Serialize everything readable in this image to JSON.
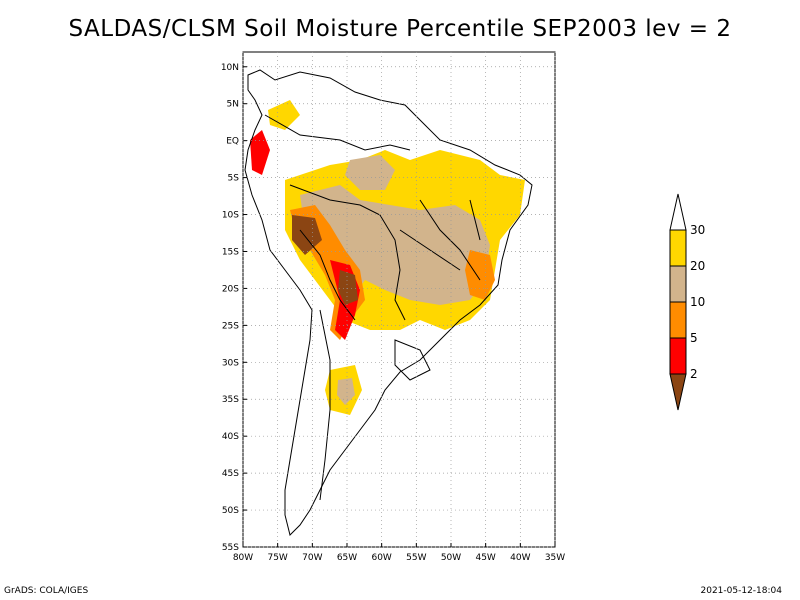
{
  "title": "SALDAS/CLSM Soil Moisture Percentile SEP2003 lev = 2",
  "footer": {
    "left": "GrADS: COLA/IGES",
    "right": "2021-05-12-18:04"
  },
  "map": {
    "lon_range": [
      -80,
      -35
    ],
    "lat_range": [
      -55,
      12
    ],
    "lat_ticks": [
      {
        "value": 10,
        "label": "10N"
      },
      {
        "value": 5,
        "label": "5N"
      },
      {
        "value": 0,
        "label": "EQ"
      },
      {
        "value": -5,
        "label": "5S"
      },
      {
        "value": -10,
        "label": "10S"
      },
      {
        "value": -15,
        "label": "15S"
      },
      {
        "value": -20,
        "label": "20S"
      },
      {
        "value": -25,
        "label": "25S"
      },
      {
        "value": -30,
        "label": "30S"
      },
      {
        "value": -35,
        "label": "35S"
      },
      {
        "value": -40,
        "label": "40S"
      },
      {
        "value": -45,
        "label": "45S"
      },
      {
        "value": -50,
        "label": "50S"
      },
      {
        "value": -55,
        "label": "55S"
      }
    ],
    "lon_ticks": [
      {
        "value": -80,
        "label": "80W"
      },
      {
        "value": -75,
        "label": "75W"
      },
      {
        "value": -70,
        "label": "70W"
      },
      {
        "value": -65,
        "label": "65W"
      },
      {
        "value": -60,
        "label": "60W"
      },
      {
        "value": -55,
        "label": "55W"
      },
      {
        "value": -50,
        "label": "50W"
      },
      {
        "value": -45,
        "label": "45W"
      },
      {
        "value": -40,
        "label": "40W"
      },
      {
        "value": -35,
        "label": "35W"
      }
    ]
  },
  "colorbar": {
    "levels": [
      2,
      5,
      10,
      20,
      30
    ],
    "colors": [
      "#8B4513",
      "#FF0000",
      "#FF8C00",
      "#D2B48C",
      "#FFD700",
      "#FFFFFF"
    ],
    "labels": [
      "2",
      "5",
      "10",
      "20",
      "30"
    ]
  }
}
